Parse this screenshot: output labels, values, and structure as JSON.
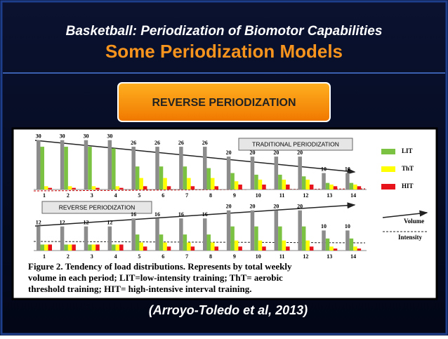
{
  "header": {
    "title": "Basketball: Periodization of Biomotor Capabilities",
    "subtitle": "Some Periodization Models"
  },
  "banner": "REVERSE PERIODIZATION",
  "figure": {
    "volume_label": "Volume",
    "intensity_label": "Intensity",
    "caption": [
      "Figure 2. Tendency of load distributions. Represents by total weekly",
      "volume in each period; LIT=low-intensity training; ThT= aerobic",
      "threshold training; HIT= high-intensive interval training."
    ]
  },
  "chart_data": [
    {
      "type": "bar",
      "title": "TRADITIONAL PERIODIZATION",
      "categories": [
        "1",
        "2",
        "3",
        "4",
        "5",
        "6",
        "7",
        "8",
        "9",
        "10",
        "11",
        "12",
        "13",
        "14"
      ],
      "ylim": [
        0,
        32
      ],
      "series": [
        {
          "color": "#8c8c8c",
          "values": [
            30,
            30,
            30,
            30,
            26,
            26,
            26,
            26,
            20,
            20,
            20,
            20,
            10,
            10
          ]
        },
        {
          "name": "LIT",
          "color": "#7cc242",
          "values": [
            26,
            26,
            26,
            25,
            14,
            14,
            14,
            13,
            10,
            9,
            9,
            8,
            4,
            4
          ]
        },
        {
          "name": "ThT",
          "color": "#ffff00",
          "values": [
            2,
            2,
            2,
            2,
            7,
            7,
            7,
            7,
            5,
            6,
            6,
            6,
            3,
            3
          ]
        },
        {
          "name": "HIT",
          "color": "#e8141b",
          "values": [
            1,
            1,
            1,
            1,
            2,
            2,
            2,
            2,
            3,
            3,
            3,
            3,
            2,
            2
          ]
        }
      ]
    },
    {
      "type": "bar",
      "title": "REVERSE PERIODIZATION",
      "categories": [
        "1",
        "2",
        "3",
        "4",
        "5",
        "6",
        "7",
        "8",
        "9",
        "10",
        "11",
        "12",
        "13",
        "14"
      ],
      "ylim": [
        0,
        22
      ],
      "series": [
        {
          "color": "#8c8c8c",
          "values": [
            12,
            12,
            12,
            12,
            16,
            16,
            16,
            16,
            20,
            20,
            20,
            20,
            10,
            10
          ]
        },
        {
          "color": "#7cc242",
          "values": [
            3,
            3,
            3,
            3,
            8,
            8,
            8,
            8,
            12,
            12,
            12,
            12,
            6,
            6
          ]
        },
        {
          "color": "#ffff00",
          "values": [
            3,
            3,
            3,
            3,
            4,
            4,
            4,
            4,
            5,
            5,
            5,
            5,
            2,
            2
          ]
        },
        {
          "color": "#e8141b",
          "values": [
            3,
            3,
            3,
            3,
            2,
            2,
            2,
            2,
            2,
            2,
            2,
            2,
            1,
            1
          ]
        }
      ]
    }
  ],
  "citation": "(Arroyo-Toledo et al, 2013)"
}
